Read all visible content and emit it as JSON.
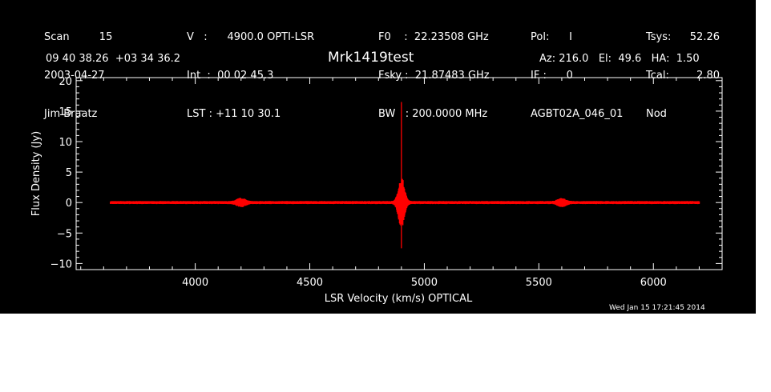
{
  "header": {
    "col1": [
      "Scan         15",
      "2003-04-27",
      "Jim Braatz"
    ],
    "col2": [
      "V   :      4900.0 OPTI-LSR",
      "Int  :  00 02 45.3",
      "LST : +11 10 30.1"
    ],
    "col3": [
      "F0    :  22.23508 GHz",
      "Fsky :  21.87483 GHz",
      "BW   : 200.0000 MHz"
    ],
    "col4": [
      "Pol:      I",
      "IF :      0",
      "AGBT02A_046_01"
    ],
    "col5_labels": [
      "Tsys:",
      "Tcal:",
      "Nod"
    ],
    "col5_values": [
      "52.26",
      "2.80",
      ""
    ],
    "coords": "09 40 38.26  +03 34 36.2",
    "source": "Mrk1419test",
    "azel": "Az: 216.0   El:  49.6   HA:  1.50",
    "timestamp": "Wed Jan 15 17:21:45 2014"
  },
  "chart_data": {
    "type": "line",
    "title": "Mrk1419test",
    "xlabel": "LSR Velocity (km/s) OPTICAL",
    "ylabel": "Flux Density (Jy)",
    "xlim": [
      3480,
      6300
    ],
    "ylim": [
      -11,
      20.5
    ],
    "xticks": [
      4000,
      4500,
      5000,
      5500,
      6000
    ],
    "xtick_labels": [
      "4000",
      "4500",
      "5000",
      "5500",
      "6000"
    ],
    "yticks": [
      -10,
      -5,
      0,
      5,
      10,
      15,
      20
    ],
    "ytick_labels": [
      "−10",
      "−5",
      "0",
      "5",
      "10",
      "15",
      "20"
    ],
    "x_minor_step": 100,
    "y_minor_step": 1,
    "series": [
      {
        "color": "#ff0000",
        "x_range": [
          3630,
          6200
        ],
        "noise_band_jy": 0.25,
        "features": [
          {
            "x": 4200,
            "amp": 0.55,
            "width": 25
          },
          {
            "x": 5600,
            "amp": 0.5,
            "width": 25
          },
          {
            "x": 4900,
            "amp": 4.0,
            "width": 18
          }
        ],
        "peak": {
          "x": 4900,
          "max": 16.5,
          "min": -7.5
        }
      }
    ]
  }
}
